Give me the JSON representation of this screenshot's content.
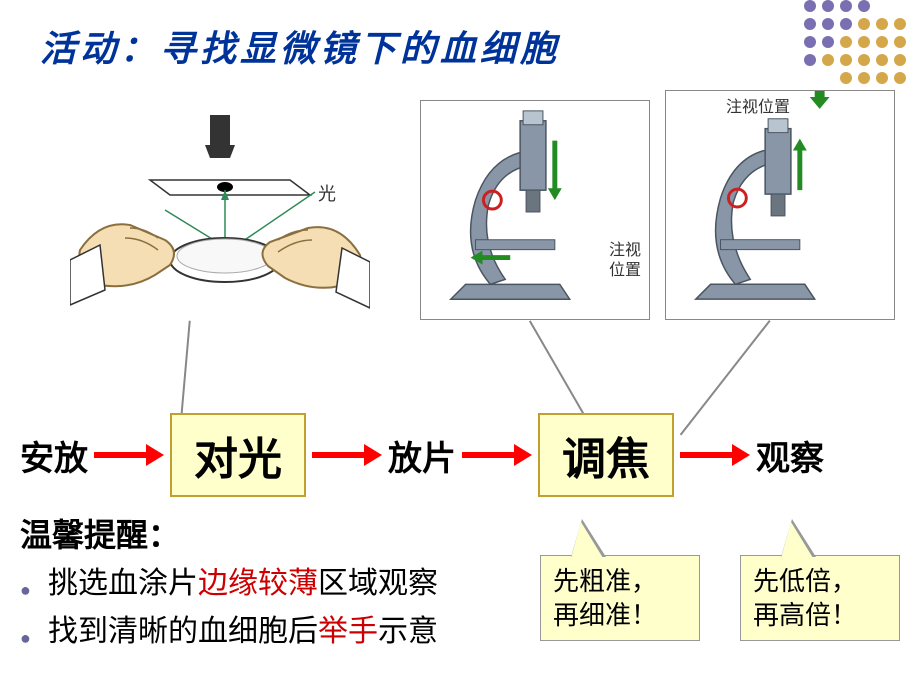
{
  "title": "活动：寻找显微镜下的血细胞",
  "decor": {
    "dot_color_top": "#7a6fb0",
    "dot_color_bottom": "#d4a84a",
    "rows": 5,
    "cols": 6
  },
  "images": {
    "img1_label_light": "光",
    "img2_label1": "注视",
    "img2_label2": "位置",
    "img3_top_label": "注视位置"
  },
  "flow": {
    "steps": [
      "安放",
      "对光",
      "放片",
      "调焦",
      "观察"
    ],
    "boxed": [
      false,
      true,
      false,
      true,
      false
    ],
    "arrow_color": "#ff0000",
    "box_bg": "#ffffcc",
    "box_border": "#c0a030"
  },
  "tips": {
    "title": "温馨提醒：",
    "items": [
      {
        "pre": "挑选血涂片",
        "hl": "边缘较薄",
        "post": "区域观察"
      },
      {
        "pre": "找到清晰的血细胞后",
        "hl": "举手",
        "post": "示意"
      }
    ],
    "hl_color": "#cc0000"
  },
  "callouts": {
    "c1": {
      "line1": "先粗准，",
      "line2": "再细准！"
    },
    "c2": {
      "line1": "先低倍，",
      "line2": "再高倍！"
    }
  },
  "svg_colors": {
    "hand_fill": "#f5deb3",
    "hand_stroke": "#8b6f3e",
    "scope_fill": "#8896a8",
    "scope_dark": "#4a5560",
    "green_arrow": "#228b22",
    "red_circle": "#cc2020"
  }
}
